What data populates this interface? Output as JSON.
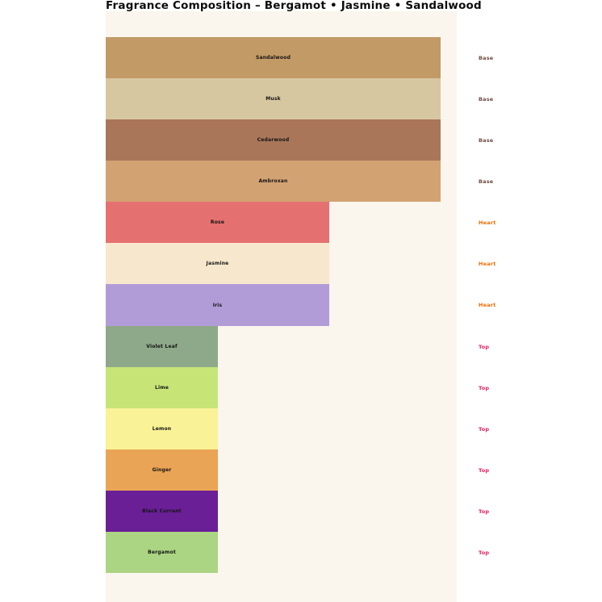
{
  "title": "Fragrance Composition – Bergamot • Jasmine • Sandalwood",
  "colors": {
    "page_background": "#ffffff",
    "plot_background": "#faf5ed",
    "bar_label_text": "#141414",
    "title_text": "#0d0d0d"
  },
  "chart_data": {
    "type": "bar",
    "orientation": "horizontal",
    "title": "Fragrance Composition – Bergamot • Jasmine • Sandalwood",
    "xlabel": "",
    "ylabel": "",
    "grid": false,
    "axes_visible": false,
    "legend_position": "none",
    "value_scale": "relative note prominence: Base=3, Heart=2, Top=1",
    "xlim": [
      0,
      3.15
    ],
    "categories": [
      "Sandalwood",
      "Musk",
      "Cedarwood",
      "Ambroxan",
      "Rose",
      "Jasmine",
      "Iris",
      "Violet Leaf",
      "Lime",
      "Lemon",
      "Ginger",
      "Black Currant",
      "Bergamot"
    ],
    "values": [
      3,
      3,
      3,
      3,
      2,
      2,
      2,
      1,
      1,
      1,
      1,
      1,
      1
    ],
    "bars": [
      {
        "label": "Sandalwood",
        "tier": "Base",
        "value": 3,
        "color": "#c29a66"
      },
      {
        "label": "Musk",
        "tier": "Base",
        "value": 3,
        "color": "#d7c7a1"
      },
      {
        "label": "Cedarwood",
        "tier": "Base",
        "value": 3,
        "color": "#a9765a"
      },
      {
        "label": "Ambroxan",
        "tier": "Base",
        "value": 3,
        "color": "#d3a272"
      },
      {
        "label": "Rose",
        "tier": "Heart",
        "value": 2,
        "color": "#e57070"
      },
      {
        "label": "Jasmine",
        "tier": "Heart",
        "value": 2,
        "color": "#f6e7cd"
      },
      {
        "label": "Iris",
        "tier": "Heart",
        "value": 2,
        "color": "#b29cd8"
      },
      {
        "label": "Violet Leaf",
        "tier": "Top",
        "value": 1,
        "color": "#8ea989"
      },
      {
        "label": "Lime",
        "tier": "Top",
        "value": 1,
        "color": "#c7e577"
      },
      {
        "label": "Lemon",
        "tier": "Top",
        "value": 1,
        "color": "#faf296"
      },
      {
        "label": "Ginger",
        "tier": "Top",
        "value": 1,
        "color": "#e9a455"
      },
      {
        "label": "Black Currant",
        "tier": "Top",
        "value": 1,
        "color": "#6a1f97"
      },
      {
        "label": "Bergamot",
        "tier": "Top",
        "value": 1,
        "color": "#abd483"
      }
    ],
    "tier_label_colors": {
      "Base": "#6d4c41",
      "Heart": "#ef6c00",
      "Top": "#e91e63"
    }
  }
}
